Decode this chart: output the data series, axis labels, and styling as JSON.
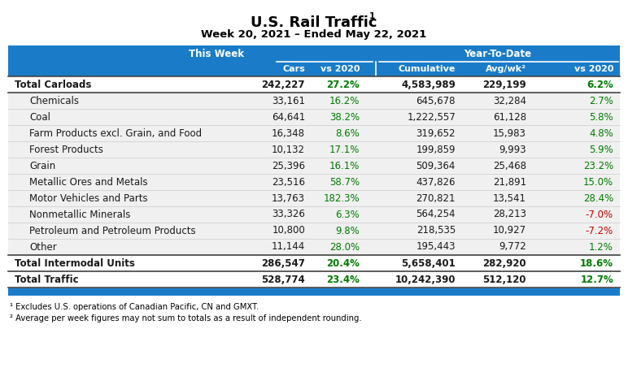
{
  "title": "U.S. Rail Traffic",
  "title_super": "1",
  "subtitle": "Week 20, 2021 – Ended May 22, 2021",
  "header_group1": "This Week",
  "header_group2": "Year-To-Date",
  "col_headers": [
    "Cars",
    "vs 2020",
    "Cumulative",
    "Avg/wk²",
    "vs 2020"
  ],
  "rows": [
    {
      "label": "Total Carloads",
      "bold": true,
      "indent": false,
      "cars": "242,227",
      "vs2020_tw": "27.2%",
      "cumulative": "4,583,989",
      "avgwk": "229,199",
      "vs2020_ytd": "6.2%",
      "vs2020_tw_neg": false,
      "vs2020_ytd_neg": false,
      "type": "total"
    },
    {
      "label": "Chemicals",
      "bold": false,
      "indent": true,
      "cars": "33,161",
      "vs2020_tw": "16.2%",
      "cumulative": "645,678",
      "avgwk": "32,284",
      "vs2020_ytd": "2.7%",
      "vs2020_tw_neg": false,
      "vs2020_ytd_neg": false,
      "type": "sub"
    },
    {
      "label": "Coal",
      "bold": false,
      "indent": true,
      "cars": "64,641",
      "vs2020_tw": "38.2%",
      "cumulative": "1,222,557",
      "avgwk": "61,128",
      "vs2020_ytd": "5.8%",
      "vs2020_tw_neg": false,
      "vs2020_ytd_neg": false,
      "type": "sub"
    },
    {
      "label": "Farm Products excl. Grain, and Food",
      "bold": false,
      "indent": true,
      "cars": "16,348",
      "vs2020_tw": "8.6%",
      "cumulative": "319,652",
      "avgwk": "15,983",
      "vs2020_ytd": "4.8%",
      "vs2020_tw_neg": false,
      "vs2020_ytd_neg": false,
      "type": "sub"
    },
    {
      "label": "Forest Products",
      "bold": false,
      "indent": true,
      "cars": "10,132",
      "vs2020_tw": "17.1%",
      "cumulative": "199,859",
      "avgwk": "9,993",
      "vs2020_ytd": "5.9%",
      "vs2020_tw_neg": false,
      "vs2020_ytd_neg": false,
      "type": "sub"
    },
    {
      "label": "Grain",
      "bold": false,
      "indent": true,
      "cars": "25,396",
      "vs2020_tw": "16.1%",
      "cumulative": "509,364",
      "avgwk": "25,468",
      "vs2020_ytd": "23.2%",
      "vs2020_tw_neg": false,
      "vs2020_ytd_neg": false,
      "type": "sub"
    },
    {
      "label": "Metallic Ores and Metals",
      "bold": false,
      "indent": true,
      "cars": "23,516",
      "vs2020_tw": "58.7%",
      "cumulative": "437,826",
      "avgwk": "21,891",
      "vs2020_ytd": "15.0%",
      "vs2020_tw_neg": false,
      "vs2020_ytd_neg": false,
      "type": "sub"
    },
    {
      "label": "Motor Vehicles and Parts",
      "bold": false,
      "indent": true,
      "cars": "13,763",
      "vs2020_tw": "182.3%",
      "cumulative": "270,821",
      "avgwk": "13,541",
      "vs2020_ytd": "28.4%",
      "vs2020_tw_neg": false,
      "vs2020_ytd_neg": false,
      "type": "sub"
    },
    {
      "label": "Nonmetallic Minerals",
      "bold": false,
      "indent": true,
      "cars": "33,326",
      "vs2020_tw": "6.3%",
      "cumulative": "564,254",
      "avgwk": "28,213",
      "vs2020_ytd": "-7.0%",
      "vs2020_tw_neg": false,
      "vs2020_ytd_neg": true,
      "type": "sub"
    },
    {
      "label": "Petroleum and Petroleum Products",
      "bold": false,
      "indent": true,
      "cars": "10,800",
      "vs2020_tw": "9.8%",
      "cumulative": "218,535",
      "avgwk": "10,927",
      "vs2020_ytd": "-7.2%",
      "vs2020_tw_neg": false,
      "vs2020_ytd_neg": true,
      "type": "sub"
    },
    {
      "label": "Other",
      "bold": false,
      "indent": true,
      "cars": "11,144",
      "vs2020_tw": "28.0%",
      "cumulative": "195,443",
      "avgwk": "9,772",
      "vs2020_ytd": "1.2%",
      "vs2020_tw_neg": false,
      "vs2020_ytd_neg": false,
      "type": "sub"
    },
    {
      "label": "Total Intermodal Units",
      "bold": true,
      "indent": false,
      "cars": "286,547",
      "vs2020_tw": "20.4%",
      "cumulative": "5,658,401",
      "avgwk": "282,920",
      "vs2020_ytd": "18.6%",
      "vs2020_tw_neg": false,
      "vs2020_ytd_neg": false,
      "type": "total"
    },
    {
      "label": "Total Traffic",
      "bold": true,
      "indent": false,
      "cars": "528,774",
      "vs2020_tw": "23.4%",
      "cumulative": "10,242,390",
      "avgwk": "512,120",
      "vs2020_ytd": "12.7%",
      "vs2020_tw_neg": false,
      "vs2020_ytd_neg": false,
      "type": "total"
    }
  ],
  "footnotes": [
    "¹ Excludes U.S. operations of Canadian Pacific, CN and GMXT.",
    "² Average per week figures may not sum to totals as a result of independent rounding."
  ],
  "blue": "#1A7CC9",
  "green": "#007B00",
  "red": "#CC0000",
  "light_gray": "#E8E8E8",
  "divider_white": "#FFFFFF",
  "dark_text": "#1A1A1A"
}
